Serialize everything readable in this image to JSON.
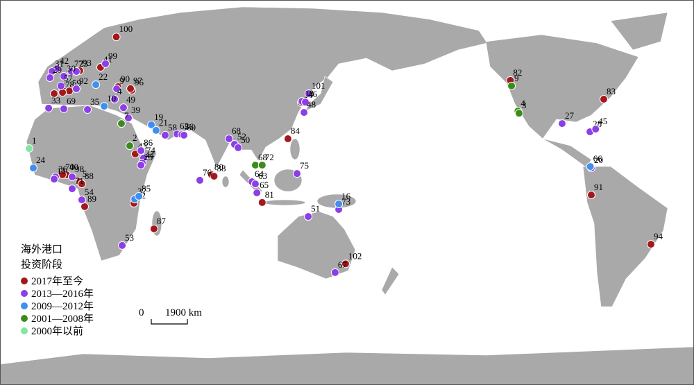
{
  "legend_title": [
    "海外港口",
    "投资阶段"
  ],
  "scale_bar": {
    "start": "0",
    "end": "1900 km"
  },
  "series": [
    {
      "name": "2017年至今",
      "color": "#a3191b",
      "ports": [
        {
          "label": "100",
          "lon": 29,
          "lat": 60
        },
        {
          "label": "93",
          "lon": 9.7,
          "lat": 46
        },
        {
          "label": "41",
          "lon": 20.7,
          "lat": 47.4
        },
        {
          "label": "59",
          "lon": 4.2,
          "lat": 37.6
        },
        {
          "label": "78",
          "lon": 0.6,
          "lat": 37
        },
        {
          "label": "32",
          "lon": -3.8,
          "lat": 36.5
        },
        {
          "label": "90",
          "lon": 29.9,
          "lat": 39.4
        },
        {
          "label": "96",
          "lon": 37.2,
          "lat": 37.9
        },
        {
          "label": "97",
          "lon": 36.5,
          "lat": 38.6
        },
        {
          "label": "43",
          "lon": 39,
          "lat": 11.5
        },
        {
          "label": "40",
          "lon": 2.8,
          "lat": 2.9
        },
        {
          "label": "70",
          "lon": 0.6,
          "lat": 2.9
        },
        {
          "label": "5",
          "lon": 9.7,
          "lat": 0
        },
        {
          "label": "88",
          "lon": 10.8,
          "lat": -0.9
        },
        {
          "label": "89",
          "lon": 12.3,
          "lat": -10.3
        },
        {
          "label": "12",
          "lon": 38.3,
          "lat": -8.9
        },
        {
          "label": "87",
          "lon": 48.9,
          "lat": -19.5
        },
        {
          "label": "80",
          "lon": 79.3,
          "lat": 2.9
        },
        {
          "label": "38",
          "lon": 80.6,
          "lat": 2.3
        },
        {
          "label": "84",
          "lon": 119.6,
          "lat": 17.8
        },
        {
          "label": "81",
          "lon": 106,
          "lat": -8.6
        },
        {
          "label": "102",
          "lon": 150,
          "lat": -34
        },
        {
          "label": "15",
          "lon": 126.6,
          "lat": 32.8
        },
        {
          "label": "82",
          "lon": -123,
          "lat": 42
        },
        {
          "label": "83",
          "lon": -73.7,
          "lat": 34.2
        },
        {
          "label": "91",
          "lon": -80.3,
          "lat": -5.5
        },
        {
          "label": "94",
          "lon": -48.8,
          "lat": -25.9
        }
      ]
    },
    {
      "name": "2013—2016年",
      "color": "#8c3fe6",
      "ports": [
        {
          "label": "42",
          "lon": -2.3,
          "lat": 46.8
        },
        {
          "label": "31",
          "lon": -4.9,
          "lat": 45.7
        },
        {
          "label": "77",
          "lon": 5.3,
          "lat": 45.7
        },
        {
          "label": "23",
          "lon": 7.9,
          "lat": 45.7
        },
        {
          "label": "30",
          "lon": 1.3,
          "lat": 43.7
        },
        {
          "label": "29",
          "lon": -6,
          "lat": 43.1
        },
        {
          "label": "57",
          "lon": -0.2,
          "lat": 39.7
        },
        {
          "label": "92",
          "lon": 7.9,
          "lat": 38.5
        },
        {
          "label": "33",
          "lon": -6.7,
          "lat": 30.5
        },
        {
          "label": "69",
          "lon": 1.3,
          "lat": 30.2
        },
        {
          "label": "35",
          "lon": 13.8,
          "lat": 29.9
        },
        {
          "label": "99",
          "lon": 23.3,
          "lat": 48.9
        },
        {
          "label": "9",
          "lon": 29.2,
          "lat": 38.5
        },
        {
          "label": "4",
          "lon": 28.1,
          "lat": 34.2
        },
        {
          "label": "49",
          "lon": 32.8,
          "lat": 30.7
        },
        {
          "label": "39",
          "lon": 35.4,
          "lat": 26.4
        },
        {
          "label": "58",
          "lon": 54.8,
          "lat": 19.3
        },
        {
          "label": "62",
          "lon": 61,
          "lat": 19.8
        },
        {
          "label": "56",
          "lon": 63.6,
          "lat": 19.5
        },
        {
          "label": "60",
          "lon": 64.7,
          "lat": 19.3
        },
        {
          "label": "86",
          "lon": 42,
          "lat": 12.9
        },
        {
          "label": "74",
          "lon": 43.4,
          "lat": 9.8
        },
        {
          "label": "44",
          "lon": 42.7,
          "lat": 7.8
        },
        {
          "label": "25",
          "lon": 42,
          "lat": 6.9
        },
        {
          "label": "36",
          "lon": -3.1,
          "lat": 2
        },
        {
          "label": "13",
          "lon": -3.8,
          "lat": 1.1
        },
        {
          "label": "98",
          "lon": 5.7,
          "lat": 2
        },
        {
          "label": "71",
          "lon": 5.7,
          "lat": -2.9
        },
        {
          "label": "54",
          "lon": 10.8,
          "lat": -7.5
        },
        {
          "label": "68",
          "lon": 88.5,
          "lat": 17.8
        },
        {
          "label": "52",
          "lon": 91.4,
          "lat": 15.5
        },
        {
          "label": "50",
          "lon": 93.3,
          "lat": 14.1
        },
        {
          "label": "76",
          "lon": 73.1,
          "lat": 0.6
        },
        {
          "label": "64",
          "lon": 100.6,
          "lat": 0
        },
        {
          "label": "63",
          "lon": 102.4,
          "lat": -0.9
        },
        {
          "label": "65",
          "lon": 103.2,
          "lat": -4.6
        },
        {
          "label": "75",
          "lon": 124.4,
          "lat": 3.4
        },
        {
          "label": "51",
          "lon": 130.3,
          "lat": -14.4
        },
        {
          "label": "67",
          "lon": 144.5,
          "lat": -37.6
        },
        {
          "label": "73",
          "lon": 146.4,
          "lat": -11.5
        },
        {
          "label": "101",
          "lon": 130.6,
          "lat": 36.5
        },
        {
          "label": "18",
          "lon": 127,
          "lat": 33.3
        },
        {
          "label": "46",
          "lon": 128.8,
          "lat": 33
        },
        {
          "label": "48",
          "lon": 128.1,
          "lat": 28.7
        },
        {
          "label": "53",
          "lon": 32.1,
          "lat": -26.4
        },
        {
          "label": "28",
          "lon": -81,
          "lat": 20.7
        },
        {
          "label": "45",
          "lon": -78,
          "lat": 21.8
        },
        {
          "label": "27",
          "lon": -95.7,
          "lat": 24.1
        },
        {
          "label": "20",
          "lon": -80.3,
          "lat": 5.7
        }
      ]
    },
    {
      "name": "2009—2012年",
      "color": "#3f8ff0",
      "ports": [
        {
          "label": "22",
          "lon": 18.2,
          "lat": 40.2
        },
        {
          "label": "10",
          "lon": 22.6,
          "lat": 31.3
        },
        {
          "label": "19",
          "lon": 47.5,
          "lat": 23.6
        },
        {
          "label": "21",
          "lon": 50,
          "lat": 21.3
        },
        {
          "label": "24",
          "lon": -14.8,
          "lat": 5.7
        },
        {
          "label": "37",
          "lon": 38.7,
          "lat": -7.2
        },
        {
          "label": "85",
          "lon": 40.9,
          "lat": -6
        },
        {
          "label": "16",
          "lon": 146.4,
          "lat": -9.2
        },
        {
          "label": "66",
          "lon": -80.8,
          "lat": 6.3
        }
      ]
    },
    {
      "name": "2001—2008年",
      "color": "#3a8c1c",
      "ports": [
        {
          "label": "2",
          "lon": 36.1,
          "lat": 14.9
        },
        {
          "label": "7",
          "lon": 31.7,
          "lat": 24.1
        },
        {
          "label": "68",
          "lon": 102.4,
          "lat": 6.9
        },
        {
          "label": "72",
          "lon": 106,
          "lat": 6.9
        },
        {
          "label": "9",
          "lon": -122.4,
          "lat": 39.7
        },
        {
          "label": "4",
          "lon": -119,
          "lat": 29.3
        },
        {
          "label": "3",
          "lon": -118.4,
          "lat": 28.4
        }
      ]
    },
    {
      "name": "2000年以前",
      "color": "#7fe8a0",
      "ports": [
        {
          "label": "1",
          "lon": -17,
          "lat": 13.8
        }
      ]
    }
  ]
}
